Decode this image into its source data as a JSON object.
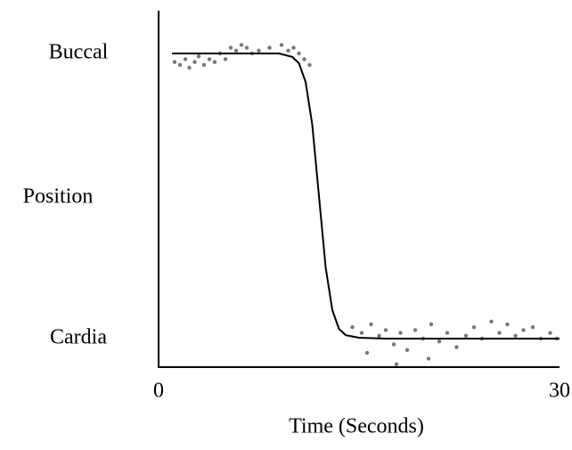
{
  "chart_data": {
    "type": "line",
    "x_label": "Time (Seconds)",
    "y_label": "Position",
    "xlim": [
      0,
      30
    ],
    "xticks": [
      0,
      30
    ],
    "ylim": [
      -0.1,
      1.15
    ],
    "yticks": [
      {
        "value": 1,
        "label": "Buccal"
      },
      {
        "value": 0,
        "label": "Cardia"
      }
    ],
    "series": [
      {
        "type": "scatter",
        "color": "#555555",
        "x": [
          1.2,
          1.6,
          2.0,
          2.3,
          2.7,
          3.0,
          3.4,
          3.8,
          4.2,
          4.6,
          5.0,
          5.4,
          5.8,
          6.2,
          6.6,
          7.0,
          7.5,
          8.3,
          9.2,
          9.7,
          10.1,
          10.5,
          10.9,
          11.3,
          14.5,
          15.2,
          15.9,
          16.5,
          17.0,
          17.6,
          18.1,
          18.6,
          19.2,
          19.8,
          20.4,
          21.0,
          21.6,
          22.3,
          23.0,
          23.6,
          24.2,
          24.9,
          25.5,
          26.1,
          26.7,
          27.3,
          28.0,
          28.6,
          29.3,
          29.8,
          17.8,
          20.2,
          15.6
        ],
        "values": [
          0.97,
          0.96,
          0.98,
          0.95,
          0.97,
          0.99,
          0.96,
          0.98,
          0.97,
          1.0,
          0.98,
          1.02,
          1.01,
          1.03,
          1.02,
          1.0,
          1.01,
          1.02,
          1.03,
          1.01,
          1.02,
          1.0,
          0.98,
          0.96,
          0.04,
          0.02,
          0.05,
          0.01,
          0.03,
          -0.02,
          0.02,
          -0.04,
          0.03,
          0.0,
          0.05,
          -0.01,
          0.02,
          -0.03,
          0.01,
          0.04,
          0.0,
          0.06,
          0.02,
          0.05,
          0.01,
          0.03,
          0.04,
          0.0,
          0.02,
          0.0,
          -0.09,
          -0.07,
          -0.05
        ]
      },
      {
        "type": "line",
        "color": "#000000",
        "x": [
          1,
          3,
          5,
          7,
          9,
          10,
          10.5,
          11,
          11.5,
          12,
          12.5,
          13,
          13.5,
          14,
          15,
          17,
          20,
          25,
          30
        ],
        "values": [
          1,
          1,
          1,
          1,
          1,
          0.988,
          0.966,
          0.9,
          0.75,
          0.5,
          0.25,
          0.1,
          0.034,
          0.012,
          0.003,
          0,
          0,
          0,
          0
        ]
      }
    ]
  }
}
